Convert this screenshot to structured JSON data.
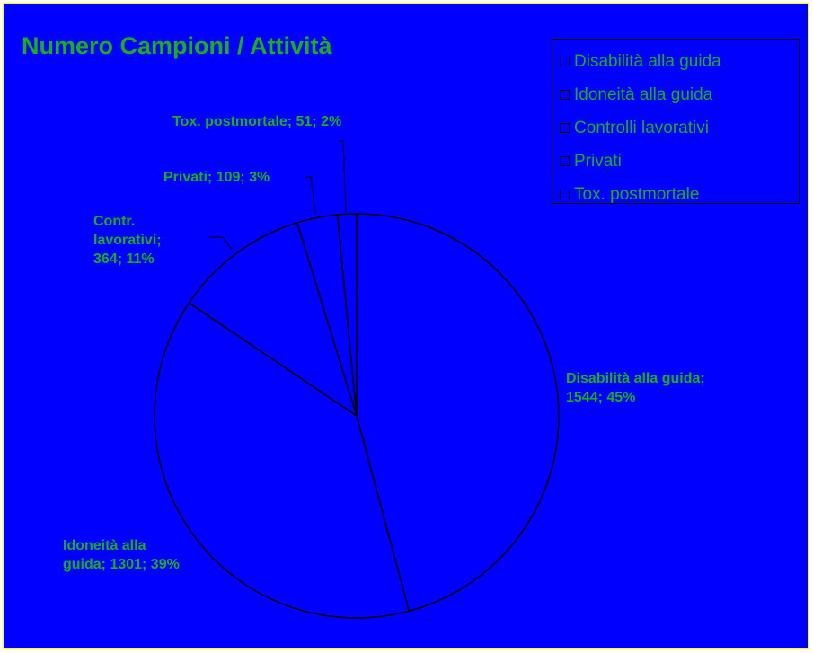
{
  "colors": {
    "background": "#0000ff",
    "frame_border": "#ffff00",
    "text": "#1aaf1a",
    "slice_fill": "#0000ff",
    "slice_stroke": "#000000"
  },
  "chart_data": {
    "type": "pie",
    "title": "Numero Campioni / Attività",
    "legend": {
      "position": "top-right",
      "entries": [
        "Disabilità alla guida",
        "Idoneità alla guida",
        "Controlli lavorativi",
        "Privati",
        "Tox. postmortale"
      ]
    },
    "slices": [
      {
        "category": "Disabilità alla guida",
        "value": 1544,
        "percent": 45,
        "label": "Disabilità alla guida; 1544; 45%"
      },
      {
        "category": "Idoneità alla guida",
        "value": 1301,
        "percent": 39,
        "label": "Idoneità alla guida; 1301; 39%"
      },
      {
        "category": "Controlli lavorativi",
        "value": 364,
        "percent": 11,
        "label": "Contr. lavorativi; 364; 11%"
      },
      {
        "category": "Privati",
        "value": 109,
        "percent": 3,
        "label": "Privati; 109; 3%"
      },
      {
        "category": "Tox. postmortale",
        "value": 51,
        "percent": 2,
        "label": "Tox. postmortale; 51; 2%"
      }
    ]
  }
}
